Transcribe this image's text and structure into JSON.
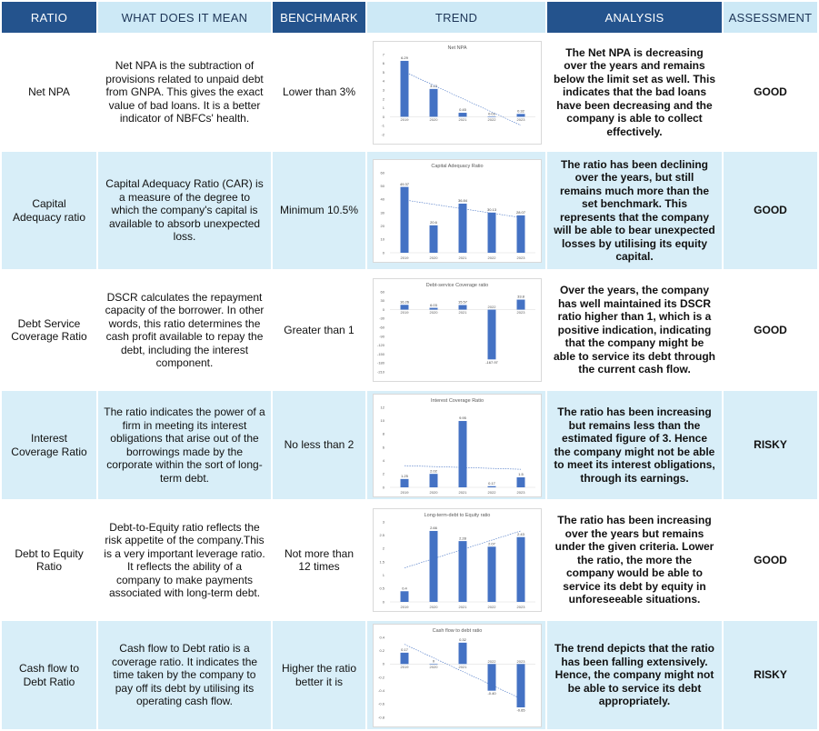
{
  "headers": {
    "ratio": "RATIO",
    "meaning": "WHAT DOES IT MEAN",
    "benchmark": "BENCHMARK",
    "trend": "TREND",
    "analysis": "ANALYSIS",
    "assessment": "ASSESSMENT"
  },
  "colors": {
    "header_dark": "#24538d",
    "header_light": "#cde9f6",
    "row_alt": "#d8eef8",
    "bar": "#4472c4",
    "trendline": "#4472c4"
  },
  "rows": [
    {
      "ratio": "Net NPA",
      "meaning": "Net NPA is the subtraction of provisions related to unpaid debt from GNPA. This gives the exact value of bad loans. It is a better indicator of NBFCs' health.",
      "benchmark": "Lower than 3%",
      "analysis": "The Net NPA is decreasing over the years and remains below the limit set as well. This indicates that the bad loans have been decreasing and the company is able to collect effectively.",
      "assessment": "GOOD"
    },
    {
      "ratio": "Capital Adequacy ratio",
      "meaning": "Capital Adequacy Ratio (CAR) is a measure of the degree to which the company's capital is available to absorb unexpected loss.",
      "benchmark": "Minimum 10.5%",
      "analysis": "The ratio has been declining over the years, but still remains much more than the set benchmark. This represents that the company will be able to bear unexpected losses by utilising its equity capital.",
      "assessment": "GOOD"
    },
    {
      "ratio": "Debt Service Coverage Ratio",
      "meaning": "DSCR calculates the repayment capacity of the borrower. In other words, this ratio determines the cash profit available to repay the debt, including the interest component.",
      "benchmark": "Greater than 1",
      "analysis": "Over the years, the company has well maintained its DSCR ratio higher than 1, which is a positive indication, indicating that the company might be able to service its debt through the current cash flow.",
      "assessment": "GOOD"
    },
    {
      "ratio": "Interest Coverage Ratio",
      "meaning": "The ratio indicates the power of a firm in meeting its interest obligations that arise out of the borrowings made by the corporate within the sort of long-term debt.",
      "benchmark": "No less than 2",
      "analysis": "The ratio has been increasing but remains less than the estimated figure of 3. Hence the company might not be able to meet its interest obligations, through its earnings.",
      "assessment": "RISKY"
    },
    {
      "ratio": "Debt to Equity Ratio",
      "meaning": "Debt-to-Equity ratio reflects the risk appetite of the company.This is a very important leverage ratio. It reflects the ability of a company to make payments associated with long-term debt.",
      "benchmark": "Not more than 12 times",
      "analysis": "The ratio has been increasing over the years but remains under the given criteria. Lower the ratio, the more the company would be able to service its debt by equity in unforeseeable situations.",
      "assessment": "GOOD"
    },
    {
      "ratio": "Cash flow to Debt Ratio",
      "meaning": "Cash flow to Debt ratio is a coverage ratio. It indicates the time taken by the company to pay off its debt by utilising its operating cash flow.",
      "benchmark": "Higher the ratio better it is",
      "analysis": "The trend depicts that the ratio has been falling extensively. Hence, the company might not be able to service its debt appropriately.",
      "assessment": "RISKY"
    }
  ],
  "chart_data": [
    {
      "type": "bar",
      "title": "Net NPA",
      "categories": [
        "2019",
        "2020",
        "2021",
        "2022",
        "2023"
      ],
      "values": [
        6.29,
        3.13,
        0.45,
        0.03,
        0.32
      ],
      "value_labels": [
        "6.29",
        "3.13",
        "0.45",
        "0.03",
        "0.32"
      ],
      "ylim": [
        -2,
        7
      ],
      "yticks": [
        -2,
        -1,
        0,
        1,
        2,
        3,
        4,
        5,
        6,
        7
      ],
      "trendline": "linear"
    },
    {
      "type": "bar",
      "title": "Capital Adequacy Ratio",
      "categories": [
        "2019",
        "2020",
        "2021",
        "2022",
        "2023"
      ],
      "values": [
        49.37,
        20.6,
        36.84,
        30.13,
        28.07
      ],
      "value_labels": [
        "49.37",
        "20.6",
        "36.84",
        "30.13",
        "28.07"
      ],
      "ylim": [
        0,
        60
      ],
      "yticks": [
        0,
        10,
        20,
        30,
        40,
        50,
        60
      ],
      "trendline": "linear"
    },
    {
      "type": "bar",
      "title": "Debt-service Coverage ratio",
      "categories": [
        "2019",
        "2020",
        "2021",
        "2022",
        "2023"
      ],
      "values": [
        16.26,
        6.03,
        15.57,
        -167.97,
        33.8
      ],
      "value_labels": [
        "16.26",
        "6.03",
        "15.57",
        "-167.97",
        "33.8"
      ],
      "ylim": [
        -210,
        60
      ],
      "yticks": [
        -210,
        -180,
        -150,
        -120,
        -90,
        -60,
        -30,
        0,
        30,
        60
      ],
      "trendline": "none"
    },
    {
      "type": "bar",
      "title": "Interest Coverage Ratio",
      "categories": [
        "2019",
        "2020",
        "2021",
        "2022",
        "2023"
      ],
      "values": [
        1.25,
        2.02,
        9.95,
        0.17,
        1.5
      ],
      "value_labels": [
        "1.25",
        "2.02",
        "9.95",
        "0.17",
        "1.5"
      ],
      "ylim": [
        0,
        12
      ],
      "yticks": [
        0,
        2,
        4,
        6,
        8,
        10,
        12
      ],
      "trendline": "linear"
    },
    {
      "type": "bar",
      "title": "Long-term-debt to Equity ratio",
      "categories": [
        "2019",
        "2020",
        "2021",
        "2022",
        "2023"
      ],
      "values": [
        0.4,
        2.66,
        2.28,
        2.07,
        2.43
      ],
      "value_labels": [
        "0.4",
        "2.66",
        "2.28",
        "2.07",
        "2.43"
      ],
      "ylim": [
        0,
        3
      ],
      "yticks": [
        0,
        0.5,
        1,
        1.5,
        2,
        2.5,
        3
      ],
      "trendline": "linear"
    },
    {
      "type": "bar",
      "title": "Cash flow to debt ratio",
      "categories": [
        "2019",
        "2020",
        "2021",
        "2022",
        "2023"
      ],
      "values": [
        0.17,
        0,
        0.32,
        -0.4,
        -0.65
      ],
      "value_labels": [
        "0.17",
        "0",
        "0.32",
        "-0.40",
        "-0.65"
      ],
      "ylim": [
        -0.8,
        0.4
      ],
      "yticks": [
        -0.8,
        -0.6,
        -0.4,
        -0.2,
        0,
        0.2,
        0.4
      ],
      "trendline": "linear"
    }
  ]
}
